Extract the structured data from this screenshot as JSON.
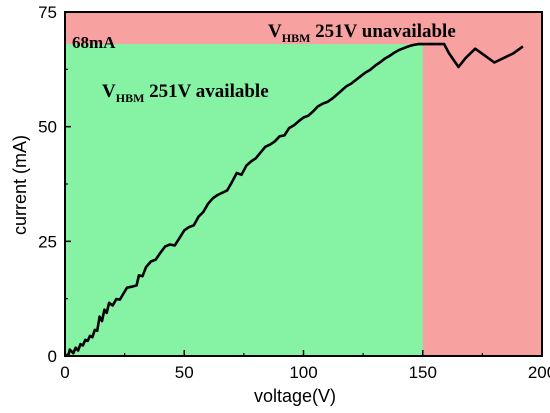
{
  "chart_data": {
    "type": "line",
    "xlabel": "voltage(V)",
    "ylabel": "current (mA)",
    "xlim": [
      0,
      200
    ],
    "ylim": [
      0,
      75
    ],
    "x_ticks": [
      "0",
      "50",
      "100",
      "150",
      "200"
    ],
    "y_ticks": [
      "0",
      "25",
      "50",
      "75"
    ],
    "grid": false,
    "regions": [
      {
        "name": "unavailable",
        "color": "#f7a1a0",
        "x_range": [
          0,
          200
        ],
        "y_range": [
          0,
          75
        ]
      },
      {
        "name": "available",
        "color": "#86f2a4",
        "x_range": [
          0,
          150
        ],
        "y_range": [
          0,
          68
        ]
      }
    ],
    "threshold": {
      "label": "68mA",
      "value": 68
    },
    "annotations": {
      "available": {
        "main": "V",
        "sub": "HBM",
        "rest": " 251V available"
      },
      "unavailable": {
        "main": "V",
        "sub": "HBM",
        "rest": " 251V unavailable"
      }
    },
    "series": [
      {
        "color": "#000000",
        "points": [
          [
            0,
            0
          ],
          [
            1.5,
            0.4
          ],
          [
            2,
            1.4
          ],
          [
            3.5,
            0.6
          ],
          [
            4.5,
            1.8
          ],
          [
            5.5,
            1.2
          ],
          [
            6.5,
            2.6
          ],
          [
            7.5,
            2.3
          ],
          [
            8.5,
            3.5
          ],
          [
            9.5,
            3.3
          ],
          [
            10.5,
            4.4
          ],
          [
            11.5,
            4.1
          ],
          [
            12.5,
            5.7
          ],
          [
            13.5,
            5.5
          ],
          [
            14.5,
            8.6
          ],
          [
            15.5,
            7.6
          ],
          [
            16.5,
            10.1
          ],
          [
            17.5,
            9.4
          ],
          [
            18.5,
            11.6
          ],
          [
            20,
            11.0
          ],
          [
            21.5,
            12.4
          ],
          [
            23,
            12.3
          ],
          [
            24.5,
            13.6
          ],
          [
            26,
            14.9
          ],
          [
            28,
            15.1
          ],
          [
            30,
            15.4
          ],
          [
            31,
            17.6
          ],
          [
            32.5,
            17.4
          ],
          [
            34,
            19.4
          ],
          [
            36,
            20.6
          ],
          [
            38,
            21.0
          ],
          [
            40,
            22.5
          ],
          [
            42,
            23.9
          ],
          [
            44,
            24.3
          ],
          [
            46,
            24.1
          ],
          [
            48,
            25.7
          ],
          [
            50,
            27.4
          ],
          [
            52,
            28.1
          ],
          [
            54,
            28.5
          ],
          [
            56,
            30.4
          ],
          [
            58,
            31.4
          ],
          [
            60,
            33.2
          ],
          [
            62,
            34.4
          ],
          [
            64,
            35.1
          ],
          [
            66,
            35.6
          ],
          [
            68,
            36.1
          ],
          [
            70,
            37.9
          ],
          [
            72,
            39.9
          ],
          [
            74,
            39.5
          ],
          [
            76,
            41.5
          ],
          [
            78,
            42.4
          ],
          [
            80,
            43.1
          ],
          [
            82,
            44.4
          ],
          [
            84,
            45.6
          ],
          [
            86,
            46.1
          ],
          [
            88,
            46.8
          ],
          [
            90,
            47.9
          ],
          [
            92,
            48.1
          ],
          [
            94,
            49.7
          ],
          [
            96,
            50.3
          ],
          [
            98,
            51.2
          ],
          [
            100,
            52.0
          ],
          [
            102,
            52.4
          ],
          [
            104,
            53.3
          ],
          [
            106,
            54.4
          ],
          [
            108,
            55.0
          ],
          [
            110,
            55.4
          ],
          [
            112,
            56.1
          ],
          [
            114,
            57.0
          ],
          [
            116,
            57.9
          ],
          [
            118,
            58.8
          ],
          [
            120,
            59.4
          ],
          [
            122,
            60.2
          ],
          [
            124,
            61.0
          ],
          [
            126,
            61.8
          ],
          [
            128,
            62.4
          ],
          [
            130,
            63.3
          ],
          [
            132,
            64.0
          ],
          [
            134,
            64.8
          ],
          [
            136,
            65.4
          ],
          [
            138,
            66.1
          ],
          [
            140,
            66.7
          ],
          [
            142,
            67.1
          ],
          [
            144,
            67.5
          ],
          [
            146,
            67.8
          ],
          [
            148,
            68.0
          ],
          [
            150,
            68.0
          ],
          [
            155,
            68.0
          ],
          [
            159,
            68.0
          ],
          [
            161,
            66.0
          ],
          [
            165,
            63.0
          ],
          [
            168,
            65.0
          ],
          [
            172,
            67.0
          ],
          [
            176,
            65.5
          ],
          [
            180,
            64.0
          ],
          [
            184,
            65.0
          ],
          [
            188,
            66.0
          ],
          [
            192,
            67.5
          ]
        ]
      }
    ]
  }
}
